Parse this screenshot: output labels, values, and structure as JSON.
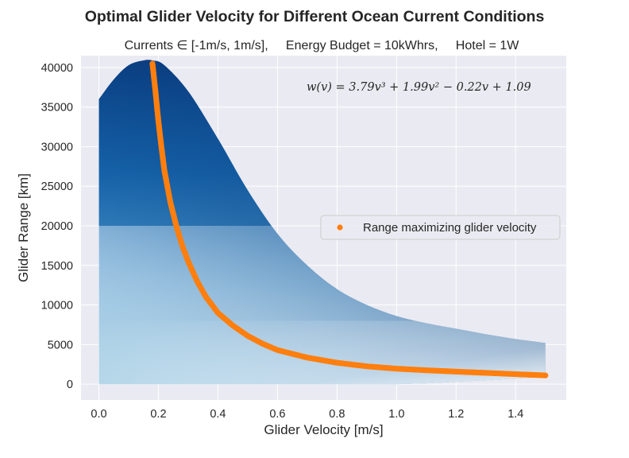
{
  "chart_data": {
    "type": "scatter",
    "title": "Optimal Glider Velocity for Different Ocean Current Conditions",
    "subtitle": "Currents ∈ [-1m/s, 1m/s],     Energy Budget = 10kWhrs,     Hotel = 1W",
    "xlabel": "Glider Velocity [m/s]",
    "ylabel": "Glider Range [km]",
    "xlim": [
      -0.06,
      1.57
    ],
    "ylim": [
      -2000,
      41500
    ],
    "x_ticks": [
      0.0,
      0.2,
      0.4,
      0.6,
      0.8,
      1.0,
      1.2,
      1.4
    ],
    "x_tick_labels": [
      "0.0",
      "0.2",
      "0.4",
      "0.6",
      "0.8",
      "1.0",
      "1.2",
      "1.4"
    ],
    "y_ticks": [
      0,
      5000,
      10000,
      15000,
      20000,
      25000,
      30000,
      35000,
      40000
    ],
    "y_tick_labels": [
      "0",
      "5000",
      "10000",
      "15000",
      "20000",
      "25000",
      "30000",
      "35000",
      "40000"
    ],
    "grid": true,
    "annotation": "w(v) = 3.79v³ + 1.99v² − 0.22v + 1.09",
    "legend": {
      "position": "center-right",
      "entries": [
        "Range maximizing glider velocity"
      ]
    },
    "colors": {
      "background": "#eaeaf2",
      "grid": "#ffffff",
      "optimal_series": "#ff7f0e",
      "colormap_light": "#f7fbff",
      "colormap_mid": "#4292c6",
      "colormap_dark": "#08306b"
    },
    "range_envelope": {
      "name": "Glider range surface",
      "x": [
        0.0,
        0.05,
        0.1,
        0.15,
        0.18,
        0.22,
        0.3,
        0.4,
        0.5,
        0.6,
        0.7,
        0.8,
        0.9,
        1.0,
        1.1,
        1.2,
        1.3,
        1.4,
        1.5
      ],
      "y_max": [
        36000,
        38500,
        40300,
        40900,
        40900,
        40300,
        37000,
        31000,
        24500,
        19000,
        15000,
        12000,
        10000,
        8600,
        7700,
        7000,
        6300,
        5700,
        5200
      ],
      "y_min": [
        0,
        0,
        0,
        0,
        0,
        0,
        0,
        0,
        0,
        0,
        0,
        0,
        0,
        0,
        100,
        300,
        500,
        700,
        900
      ]
    },
    "series": [
      {
        "name": "Range maximizing glider velocity",
        "x": [
          0.18,
          0.19,
          0.2,
          0.21,
          0.22,
          0.24,
          0.26,
          0.28,
          0.3,
          0.33,
          0.36,
          0.4,
          0.45,
          0.5,
          0.55,
          0.6,
          0.7,
          0.8,
          0.9,
          1.0,
          1.1,
          1.2,
          1.3,
          1.4,
          1.5
        ],
        "y": [
          40500,
          37000,
          33200,
          30000,
          27000,
          23000,
          20000,
          17500,
          15500,
          13000,
          11000,
          9000,
          7400,
          6100,
          5100,
          4300,
          3350,
          2700,
          2250,
          1950,
          1750,
          1580,
          1420,
          1260,
          1100
        ]
      }
    ]
  }
}
